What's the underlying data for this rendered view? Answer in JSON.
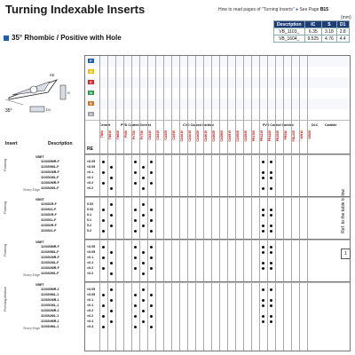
{
  "header": {
    "title": "Turning Indexable Inserts",
    "howto_prefix": "How to read pages of \"Turning Inserts\"",
    "howto_see": "See Page",
    "howto_page": "B15",
    "units": "(mm)"
  },
  "section": {
    "title": "35° Rhombic / Positive with Hole"
  },
  "dimension_table": {
    "headers": [
      "Description",
      "IC",
      "S",
      "D1"
    ],
    "rows": [
      [
        "VB_1103_",
        "6.35",
        "3.18",
        "2.8"
      ],
      [
        "VB_1604_",
        "9.525",
        "4.76",
        "4.4"
      ]
    ]
  },
  "diagram": {
    "angle": "35°",
    "re_label": "RE",
    "s_label": "S",
    "d1_label": "D1",
    "ic_label": "IC"
  },
  "materials": [
    "P",
    "M",
    "K",
    "N",
    "S",
    "H"
  ],
  "material_colors": [
    "#1e5fb4",
    "#e8c300",
    "#d9262b",
    "#2a9d4a",
    "#c77a2a",
    "#9aa0a6"
  ],
  "columns_header": {
    "insert": "Insert",
    "insert_sub": "Handed insert\nshows Left-hand",
    "description": "Description",
    "re": "RE",
    "cermet": "Cermet",
    "pvd_cermet": "PVD Coated Cermet",
    "cvd": "CVD Coated Carbide",
    "pvd_carbide": "PVD Coated Carbide",
    "dlc": "DLC",
    "carbide": "Carbide",
    "ref_table": "Ref. to the table below",
    "ref_badge": "1"
  },
  "grades": {
    "cermet": [
      "TN60",
      "TN610",
      "TN620"
    ],
    "pvd_cermet": [
      "PV60",
      "PV720",
      "PV730"
    ],
    "cvd": [
      "CA510",
      "CA515",
      "CA525",
      "CA530",
      "CA4010",
      "CA4015",
      "CA4025",
      "CA6015",
      "CA6025",
      "CA5505",
      "CA5515",
      "CA5525",
      "CA5535"
    ],
    "pvd_carbide": [
      "PR1705",
      "PR1215",
      "PR1225",
      "PR1535",
      "PR930"
    ],
    "dlc": [
      "PDL025"
    ],
    "carbide": [
      "KW10",
      "GW25"
    ]
  },
  "groups": [
    {
      "name": "Finishing",
      "edge": "Sharp Edge",
      "code": "VBET",
      "items": [
        [
          "110300MR-F",
          "<0.05"
        ],
        [
          "110300ML-F",
          "<0.05"
        ],
        [
          "110301MR-F",
          "<0.1"
        ],
        [
          "110301ML-F",
          "<0.1"
        ],
        [
          "110302MR-F",
          "<0.2"
        ],
        [
          "110302ML-F",
          "<0.2"
        ]
      ]
    },
    {
      "name": "Finishing",
      "edge": "",
      "code": "VBGT",
      "items": [
        [
          "110301R-F",
          "0.03"
        ],
        [
          "110302L-F",
          "0.03"
        ],
        [
          "110301R-F",
          "0.1"
        ],
        [
          "110301L-F",
          "0.1"
        ],
        [
          "110302R-F",
          "0.2"
        ],
        [
          "110302L-F",
          "0.2"
        ]
      ]
    },
    {
      "name": "Finishing",
      "edge": "Sharp Edge",
      "code": "VBET",
      "items": [
        [
          "110300MR-F",
          "<0.05"
        ],
        [
          "110300ML-F",
          "<0.05"
        ],
        [
          "110301MR-F",
          "<0.1"
        ],
        [
          "110301ML-F",
          "<0.1"
        ],
        [
          "110302MR-F",
          "<0.2"
        ],
        [
          "110302ML-F",
          "<0.2"
        ]
      ]
    },
    {
      "name": "Finishing-Medium",
      "edge": "Sharp Edge",
      "code": "VBET",
      "items": [
        [
          "110300MR-1",
          "<0.05"
        ],
        [
          "110300ML-1",
          "<0.05"
        ],
        [
          "110301MR-1",
          "<0.1"
        ],
        [
          "110301ML-1",
          "<0.1"
        ],
        [
          "110302MR-1",
          "<0.2"
        ],
        [
          "110302ML-1",
          "<0.2"
        ],
        [
          "110304MR-1",
          "<0.4"
        ],
        [
          "110304ML-1",
          "<0.4"
        ]
      ]
    }
  ]
}
